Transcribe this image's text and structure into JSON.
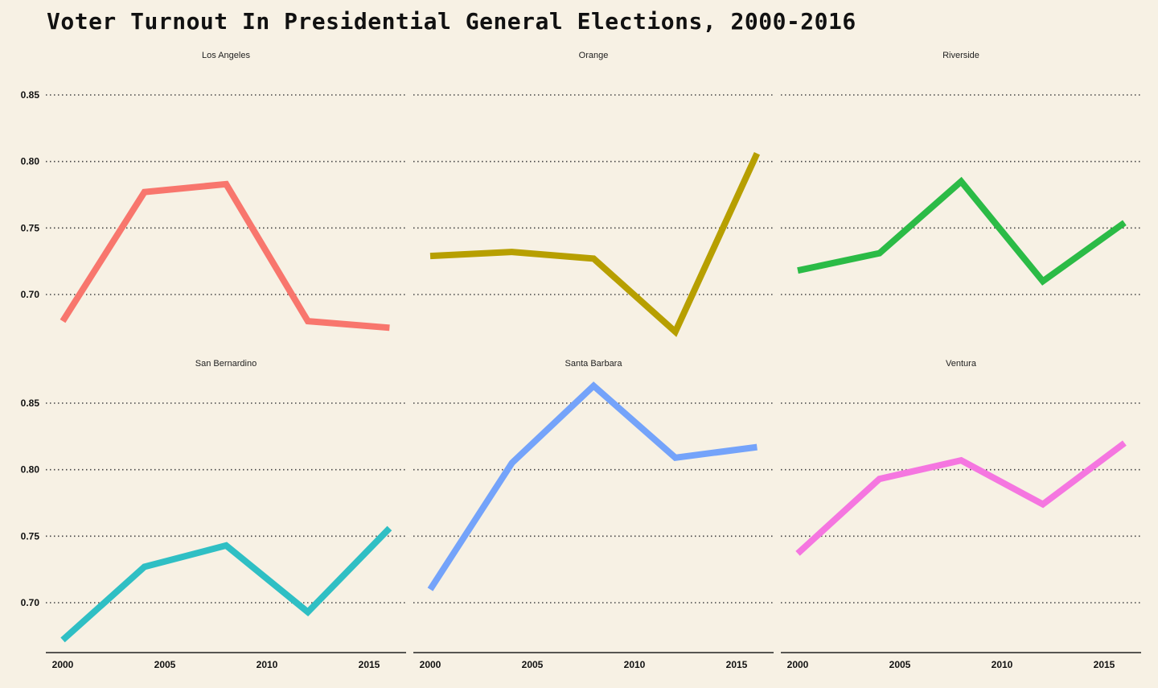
{
  "title": "Voter Turnout In Presidential General Elections, 2000-2016",
  "chart_data": {
    "type": "line",
    "x": [
      2000,
      2004,
      2008,
      2012,
      2016
    ],
    "xticks": [
      2000,
      2005,
      2010,
      2015
    ],
    "yticks": [
      "0.70",
      "0.75",
      "0.80",
      "0.85"
    ],
    "grid": "horizontal dotted",
    "facets": [
      {
        "name": "Los Angeles",
        "color": "#f8766d",
        "values": [
          0.68,
          0.777,
          0.783,
          0.68,
          0.675
        ]
      },
      {
        "name": "Orange",
        "color": "#b79f00",
        "values": [
          0.729,
          0.732,
          0.727,
          0.672,
          0.806
        ]
      },
      {
        "name": "Riverside",
        "color": "#2bbb46",
        "values": [
          0.718,
          0.731,
          0.785,
          0.71,
          0.754
        ]
      },
      {
        "name": "San Bernardino",
        "color": "#2fbfc4",
        "values": [
          0.672,
          0.727,
          0.743,
          0.693,
          0.756
        ]
      },
      {
        "name": "Santa Barbara",
        "color": "#74a3fa",
        "values": [
          0.71,
          0.805,
          0.863,
          0.809,
          0.817
        ]
      },
      {
        "name": "Ventura",
        "color": "#f576e0",
        "values": [
          0.737,
          0.793,
          0.807,
          0.774,
          0.82
        ]
      }
    ]
  }
}
